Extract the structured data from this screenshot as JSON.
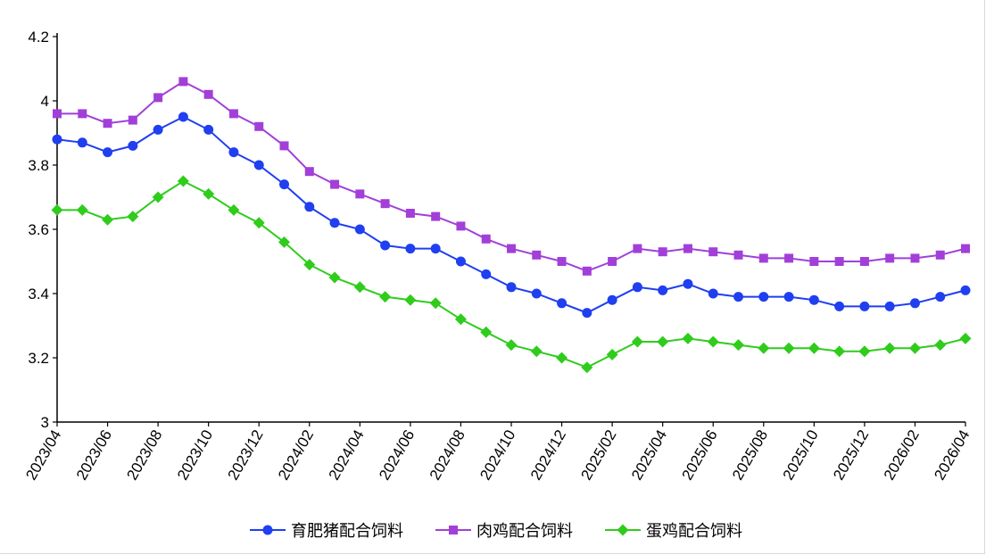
{
  "chart_data": {
    "type": "line",
    "title": "",
    "xlabel": "",
    "ylabel": "",
    "ylim": [
      3,
      4.2
    ],
    "yticks": [
      "3",
      "3.2",
      "3.4",
      "3.6",
      "3.8",
      "4",
      "4.2"
    ],
    "x": [
      "2023/04",
      "2023/05",
      "2023/06",
      "2023/07",
      "2023/08",
      "2023/09",
      "2023/10",
      "2023/11",
      "2023/12",
      "2024/01",
      "2024/02",
      "2024/03",
      "2024/04",
      "2024/05",
      "2024/06",
      "2024/07",
      "2024/08",
      "2024/09",
      "2024/10",
      "2024/11",
      "2024/12",
      "2025/01",
      "2025/02",
      "2025/03",
      "2025/04",
      "2025/05",
      "2025/06",
      "2025/07",
      "2025/08",
      "2025/09",
      "2025/10",
      "2025/11",
      "2025/12",
      "2026/01",
      "2026/02",
      "2026/03",
      "2026/04"
    ],
    "xtick_labels": [
      "2023/04",
      "2023/06",
      "2023/08",
      "2023/10",
      "2023/12",
      "2024/02",
      "2024/04",
      "2024/06",
      "2024/08",
      "2024/10",
      "2024/12",
      "2025/02",
      "2025/04",
      "2025/06",
      "2025/08",
      "2025/10",
      "2025/12",
      "2026/02",
      "2026/04"
    ],
    "grid": false,
    "legend_position": "bottom",
    "series": [
      {
        "name": "育肥猪配合饲料",
        "color": "#1f3ff0",
        "marker": "circle",
        "values": [
          3.88,
          3.87,
          3.84,
          3.86,
          3.91,
          3.95,
          3.91,
          3.84,
          3.8,
          3.74,
          3.67,
          3.62,
          3.6,
          3.55,
          3.54,
          3.54,
          3.5,
          3.46,
          3.42,
          3.4,
          3.37,
          3.34,
          3.38,
          3.42,
          3.41,
          3.43,
          3.4,
          3.39,
          3.39,
          3.39,
          3.38,
          3.36,
          3.36,
          3.36,
          3.37,
          3.39,
          3.41
        ]
      },
      {
        "name": "肉鸡配合饲料",
        "color": "#a23fd8",
        "marker": "square",
        "values": [
          3.96,
          3.96,
          3.93,
          3.94,
          4.01,
          4.06,
          4.02,
          3.96,
          3.92,
          3.86,
          3.78,
          3.74,
          3.71,
          3.68,
          3.65,
          3.64,
          3.61,
          3.57,
          3.54,
          3.52,
          3.5,
          3.47,
          3.5,
          3.54,
          3.53,
          3.54,
          3.53,
          3.52,
          3.51,
          3.51,
          3.5,
          3.5,
          3.5,
          3.51,
          3.51,
          3.52,
          3.54
        ]
      },
      {
        "name": "蛋鸡配合饲料",
        "color": "#2fcc1c",
        "marker": "diamond",
        "values": [
          3.66,
          3.66,
          3.63,
          3.64,
          3.7,
          3.75,
          3.71,
          3.66,
          3.62,
          3.56,
          3.49,
          3.45,
          3.42,
          3.39,
          3.38,
          3.37,
          3.32,
          3.28,
          3.24,
          3.22,
          3.2,
          3.17,
          3.21,
          3.25,
          3.25,
          3.26,
          3.25,
          3.24,
          3.23,
          3.23,
          3.23,
          3.22,
          3.22,
          3.23,
          3.23,
          3.24,
          3.26
        ]
      }
    ]
  }
}
